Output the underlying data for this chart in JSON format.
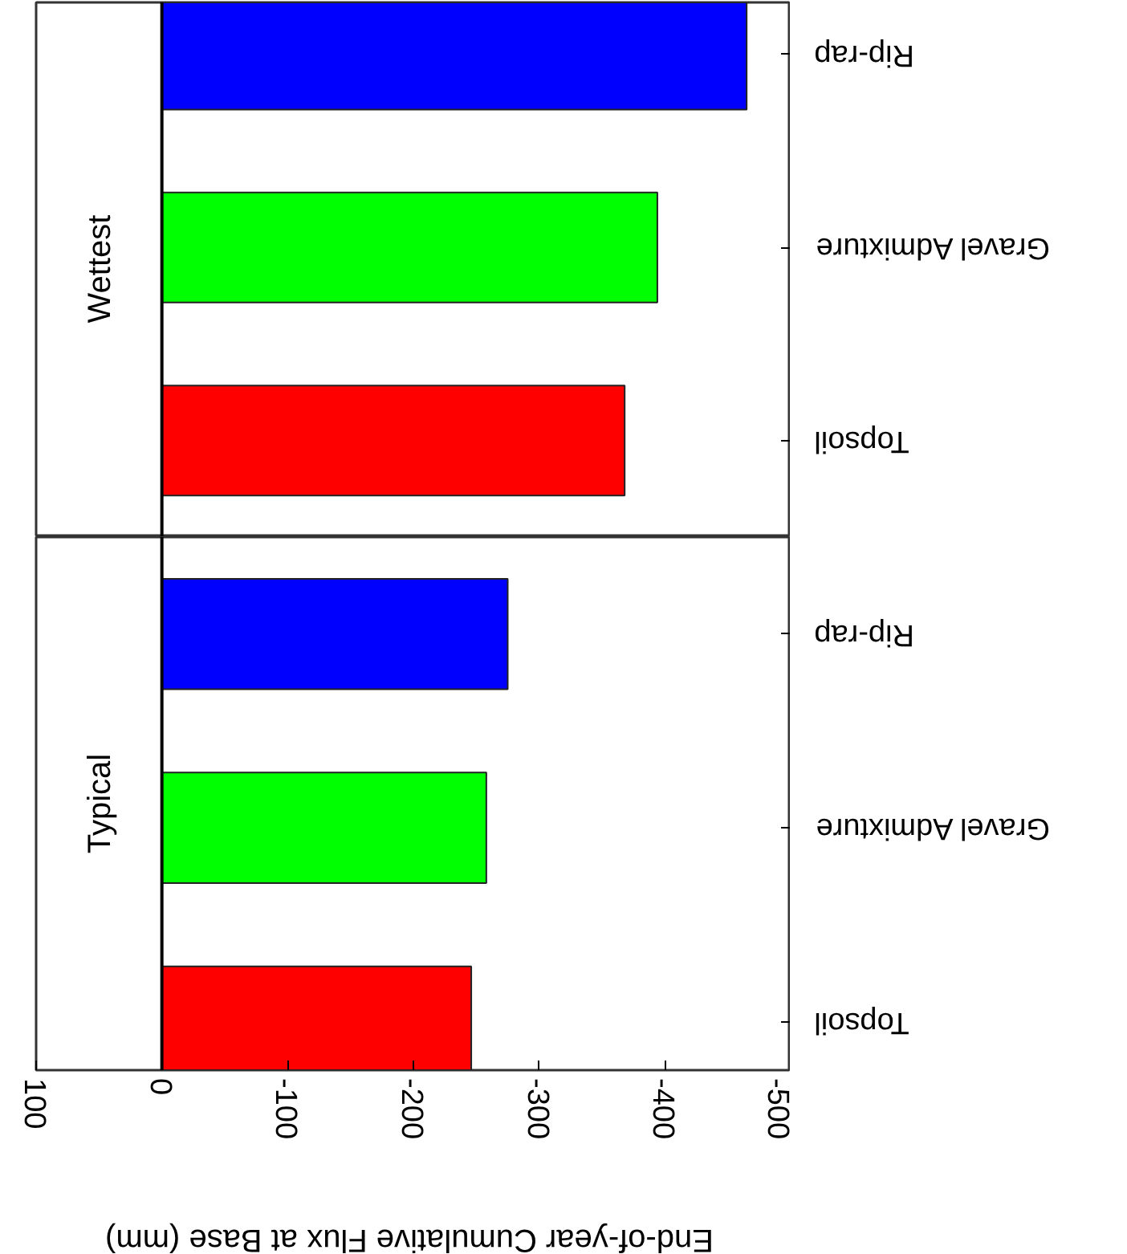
{
  "chart_data": [
    {
      "type": "bar",
      "orientation": "horizontal",
      "title": "Wettest",
      "categories": [
        "Rip-rap",
        "Gravel Admixture",
        "Topsoil"
      ],
      "values": [
        -465,
        -394,
        -368
      ],
      "colors": [
        "#0000ff",
        "#00ff00",
        "#ff0000"
      ],
      "xlim": [
        100,
        -500
      ],
      "xticks": [
        100,
        0,
        -100,
        -200,
        -300,
        -400,
        -500
      ],
      "ref_lines": [
        {
          "axis": "x",
          "value": 0
        }
      ],
      "tick_labels": "y",
      "grid": false
    },
    {
      "type": "bar",
      "orientation": "horizontal",
      "title": "Typical",
      "xlabel": "End-of-year Cumulative Flux at Base (mm)",
      "categories": [
        "Rip-rap",
        "Gravel Admixture",
        "Topsoil"
      ],
      "values": [
        -275,
        -258,
        -246
      ],
      "colors": [
        "#0000ff",
        "#00ff00",
        "#ff0000"
      ],
      "xlim": [
        100,
        -500
      ],
      "xticks": [
        100,
        0,
        -100,
        -200,
        -300,
        -400,
        -500
      ],
      "ref_lines": [
        {
          "axis": "x",
          "value": 0
        }
      ],
      "grid": false
    }
  ]
}
